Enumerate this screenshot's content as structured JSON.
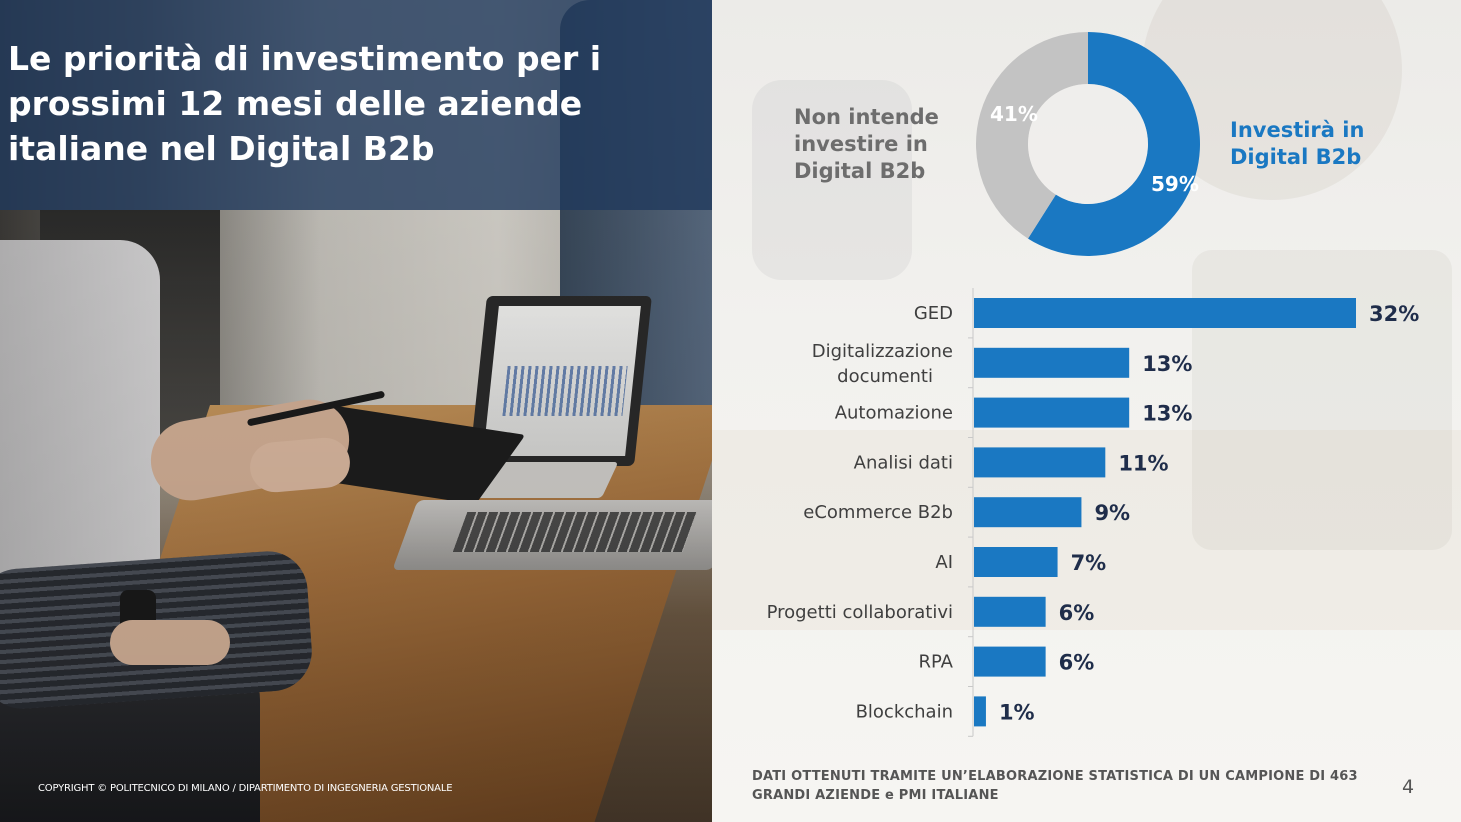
{
  "slide": {
    "title": "Le priorità di investimento per i prossimi 12 mesi delle aziende italiane nel Digital B2b",
    "copyright": "COPYRIGHT © POLITECNICO DI MILANO / DIPARTIMENTO DI INGEGNERIA GESTIONALE",
    "note": "DATI OTTENUTI TRAMITE UN’ELABORAZIONE STATISTICA DI UN CAMPIONE DI 463 GRANDI AZIENDE e PMI ITALIANE",
    "page_number": "4"
  },
  "colors": {
    "blue": "#1a78c2",
    "gray": "#c3c3c3",
    "dark_label": "#1f2d4a",
    "category_text": "#3f3f3f"
  },
  "chart_data": [
    {
      "type": "pie",
      "variant": "donut",
      "slices": [
        {
          "label": "Investirà in Digital B2b",
          "value": 59,
          "display": "59%",
          "color": "#1a78c2"
        },
        {
          "label": "Non intende investire in Digital B2b",
          "value": 41,
          "display": "41%",
          "color": "#c3c3c3"
        }
      ]
    },
    {
      "type": "bar",
      "orientation": "horizontal",
      "categories": [
        "GED",
        "Digitalizzazione documenti",
        "Automazione",
        "Analisi dati",
        "eCommerce B2b",
        "AI",
        "Progetti collaborativi",
        "RPA",
        "Blockchain"
      ],
      "values": [
        32,
        13,
        13,
        11,
        9,
        7,
        6,
        6,
        1
      ],
      "value_labels": [
        "32%",
        "13%",
        "13%",
        "11%",
        "9%",
        "7%",
        "6%",
        "6%",
        "1%"
      ],
      "xlim": [
        0,
        32
      ],
      "grid": false,
      "bar_color": "#1a78c2"
    }
  ]
}
